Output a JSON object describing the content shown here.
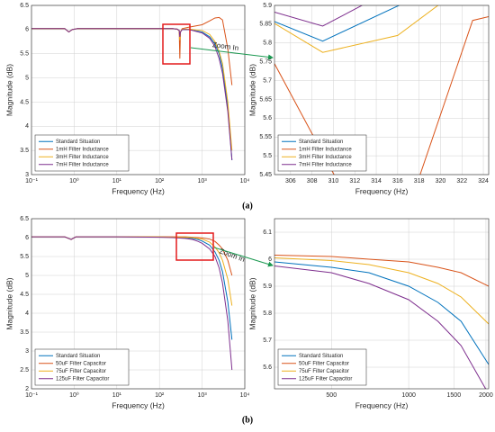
{
  "panel_labels": [
    "(a)",
    "(b)"
  ],
  "chart_data": [
    {
      "type": "line",
      "xlabel": "Frequency (Hz)",
      "ylabel": "Magnitude (dB)",
      "xscale": "log",
      "grid": true,
      "legend": "lower left",
      "annotation": "Zoom In",
      "xlim": [
        0.1,
        10000
      ],
      "xticks": [
        {
          "value": 0.1,
          "label": "10⁻¹"
        },
        {
          "value": 1,
          "label": "10⁰"
        },
        {
          "value": 10,
          "label": "10¹"
        },
        {
          "value": 100,
          "label": "10²"
        },
        {
          "value": 1000,
          "label": "10³"
        },
        {
          "value": 10000,
          "label": "10⁴"
        }
      ],
      "ylim": [
        3,
        6.5
      ],
      "yticks": [
        3,
        3.5,
        4,
        4.5,
        5,
        5.5,
        6,
        6.5
      ],
      "x": [
        0.1,
        0.6,
        0.75,
        0.9,
        1.2,
        10,
        100,
        200,
        260,
        290,
        300,
        310,
        340,
        500,
        1000,
        1500,
        2000,
        2500,
        3000,
        4000,
        5000
      ],
      "series": [
        {
          "name": "Standard Situation",
          "color": "#0072bd",
          "values": [
            6.02,
            6.02,
            5.95,
            6.0,
            6.02,
            6.02,
            6.02,
            6.02,
            6.01,
            5.98,
            5.8,
            5.95,
            6.0,
            6.0,
            5.95,
            5.85,
            5.7,
            5.5,
            5.2,
            4.4,
            3.3
          ]
        },
        {
          "name": "1mH Filter Inductance",
          "color": "#d95319",
          "values": [
            6.02,
            6.02,
            5.95,
            6.0,
            6.02,
            6.02,
            6.02,
            6.02,
            6.01,
            5.98,
            5.4,
            5.95,
            6.02,
            6.05,
            6.1,
            6.18,
            6.24,
            6.25,
            6.2,
            5.6,
            4.85
          ]
        },
        {
          "name": "3mH Filter Inductance",
          "color": "#edb120",
          "values": [
            6.02,
            6.02,
            5.95,
            6.0,
            6.02,
            6.02,
            6.02,
            6.02,
            6.01,
            5.98,
            5.78,
            5.95,
            6.01,
            6.01,
            5.98,
            5.9,
            5.75,
            5.55,
            5.3,
            4.5,
            3.5
          ]
        },
        {
          "name": "7mH Filter Inductance",
          "color": "#7e2f8e",
          "values": [
            6.02,
            6.02,
            5.95,
            6.0,
            6.02,
            6.02,
            6.02,
            6.02,
            6.01,
            5.98,
            5.85,
            5.95,
            6.0,
            6.0,
            5.93,
            5.82,
            5.65,
            5.4,
            5.1,
            4.3,
            3.3
          ]
        }
      ]
    },
    {
      "type": "line",
      "xlabel": "Frequency (Hz)",
      "ylabel": "Magnitude (dB)",
      "grid": true,
      "legend": "lower left",
      "xlim": [
        304.5,
        324.5
      ],
      "xticks": [
        306,
        308,
        310,
        312,
        314,
        316,
        318,
        320,
        322,
        324
      ],
      "ylim": [
        5.45,
        5.9
      ],
      "yticks": [
        5.45,
        5.5,
        5.55,
        5.6,
        5.65,
        5.7,
        5.75,
        5.8,
        5.85,
        5.9
      ],
      "series": [
        {
          "name": "Standard Situation",
          "color": "#0072bd",
          "x": [
            304.5,
            309,
            316.5
          ],
          "values": [
            5.857,
            5.805,
            5.905
          ]
        },
        {
          "name": "1mH Filter Inductance",
          "color": "#d95319",
          "x": [
            304.5,
            311,
            317.5,
            323,
            324.5
          ],
          "values": [
            5.745,
            5.4,
            5.4,
            5.86,
            5.87
          ]
        },
        {
          "name": "3mH Filter Inductance",
          "color": "#edb120",
          "x": [
            304.5,
            309,
            316,
            320
          ],
          "values": [
            5.852,
            5.775,
            5.82,
            5.905
          ]
        },
        {
          "name": "7mH Filter Inductance",
          "color": "#7e2f8e",
          "x": [
            304.5,
            309,
            313
          ],
          "values": [
            5.882,
            5.845,
            5.905
          ]
        }
      ]
    },
    {
      "type": "line",
      "xlabel": "Frequency (Hz)",
      "ylabel": "Magnitude (dB)",
      "xscale": "log",
      "grid": true,
      "legend": "lower left",
      "annotation": "Zoom In",
      "xlim": [
        0.1,
        10000
      ],
      "xticks": [
        {
          "value": 0.1,
          "label": "10⁻¹"
        },
        {
          "value": 1,
          "label": "10⁰"
        },
        {
          "value": 10,
          "label": "10¹"
        },
        {
          "value": 100,
          "label": "10²"
        },
        {
          "value": 1000,
          "label": "10³"
        },
        {
          "value": 10000,
          "label": "10⁴"
        }
      ],
      "ylim": [
        2,
        6.5
      ],
      "yticks": [
        2,
        2.5,
        3,
        3.5,
        4,
        4.5,
        5,
        5.5,
        6,
        6.5
      ],
      "x": [
        0.1,
        0.6,
        0.85,
        1.1,
        2,
        10,
        100,
        200,
        400,
        600,
        800,
        1000,
        1500,
        2000,
        2500,
        3000,
        4000,
        5000
      ],
      "series": [
        {
          "name": "Standard Situation",
          "color": "#0072bd",
          "values": [
            6.02,
            6.02,
            5.95,
            6.02,
            6.02,
            6.02,
            6.02,
            6.01,
            6.0,
            5.98,
            5.95,
            5.91,
            5.8,
            5.62,
            5.4,
            5.1,
            4.3,
            3.3
          ]
        },
        {
          "name": "50uF Filter Capacitor",
          "color": "#d95319",
          "values": [
            6.02,
            6.02,
            5.95,
            6.02,
            6.02,
            6.02,
            6.02,
            6.02,
            6.02,
            6.01,
            6.0,
            5.99,
            5.96,
            5.9,
            5.8,
            5.7,
            5.4,
            5.0
          ]
        },
        {
          "name": "75uF Filter Capacitor",
          "color": "#edb120",
          "values": [
            6.02,
            6.02,
            5.95,
            6.02,
            6.02,
            6.02,
            6.02,
            6.01,
            6.01,
            6.0,
            5.98,
            5.96,
            5.88,
            5.75,
            5.6,
            5.4,
            4.9,
            4.2
          ]
        },
        {
          "name": "125uF Filter Capacitor",
          "color": "#7e2f8e",
          "values": [
            6.02,
            6.02,
            5.95,
            6.02,
            6.02,
            6.02,
            6.01,
            6.0,
            5.98,
            5.95,
            5.9,
            5.85,
            5.7,
            5.5,
            5.2,
            4.8,
            3.8,
            2.5
          ]
        }
      ]
    },
    {
      "type": "line",
      "xlabel": "Frequency (Hz)",
      "ylabel": "Magnitude (dB)",
      "xscale": "log",
      "grid": true,
      "legend": "lower left",
      "xlim": [
        300,
        2050
      ],
      "xticks": [
        500,
        1000,
        1500,
        2000
      ],
      "ylim": [
        5.52,
        6.15
      ],
      "yticks": [
        5.6,
        5.7,
        5.8,
        5.9,
        6,
        6.1
      ],
      "x": [
        300,
        500,
        700,
        1000,
        1300,
        1600,
        2050
      ],
      "series": [
        {
          "name": "Standard Situation",
          "color": "#0072bd",
          "values": [
            5.99,
            5.97,
            5.95,
            5.9,
            5.84,
            5.77,
            5.61
          ]
        },
        {
          "name": "50uF Filter Capacitor",
          "color": "#d95319",
          "values": [
            6.015,
            6.01,
            6.0,
            5.99,
            5.97,
            5.95,
            5.9
          ]
        },
        {
          "name": "75uF Filter Capacitor",
          "color": "#edb120",
          "values": [
            6.005,
            5.995,
            5.98,
            5.95,
            5.91,
            5.86,
            5.76
          ]
        },
        {
          "name": "125uF Filter Capacitor",
          "color": "#7e2f8e",
          "values": [
            5.975,
            5.95,
            5.91,
            5.85,
            5.77,
            5.68,
            5.5
          ]
        }
      ]
    }
  ]
}
